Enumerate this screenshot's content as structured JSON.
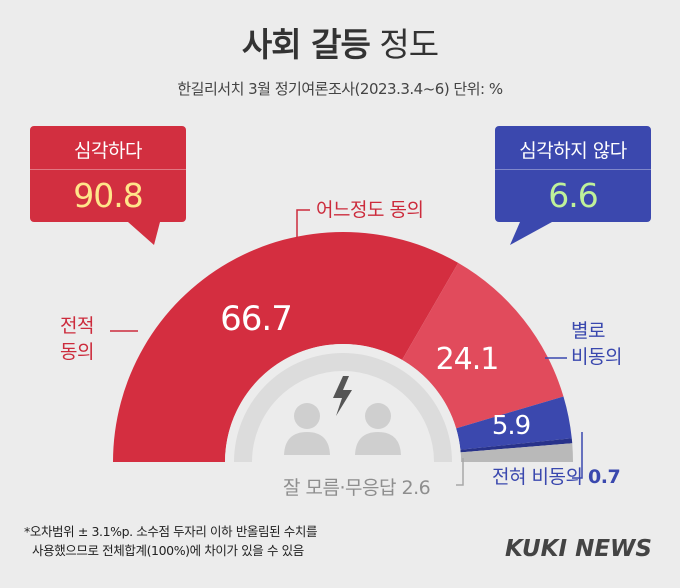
{
  "header": {
    "title_bold": "사회 갈등",
    "title_light": "정도",
    "subtitle": "한길리서치 3월 정기여론조사(2023.3.4~6) 단위: %"
  },
  "callouts": {
    "serious": {
      "label": "심각하다",
      "value": "90.8",
      "color": "#d22f40"
    },
    "not_serious": {
      "label": "심각하지 않다",
      "value": "6.6",
      "color": "#3b48ae"
    }
  },
  "labels": {
    "strongly_agree_line1": "전적",
    "strongly_agree_line2": "동의",
    "somewhat_agree": "어느정도 동의",
    "somewhat_disagree_line1": "별로",
    "somewhat_disagree_line2": "비동의",
    "strongly_disagree": "전혀 비동의",
    "strongly_disagree_value": "0.7",
    "dont_know": "잘 모름·무응답",
    "dont_know_value": "2.6"
  },
  "chart_data": {
    "type": "pie",
    "variant": "semicircle-donut",
    "title": "사회 갈등 정도",
    "unit": "%",
    "series": [
      {
        "name": "전적 동의",
        "value": 66.7,
        "color": "#d42e40"
      },
      {
        "name": "어느정도 동의",
        "value": 24.1,
        "color": "#e14b5c"
      },
      {
        "name": "별로 비동의",
        "value": 5.9,
        "color": "#3b48ae"
      },
      {
        "name": "전혀 비동의",
        "value": 0.7,
        "color": "#28328a"
      },
      {
        "name": "잘 모름·무응답",
        "value": 2.6,
        "color": "#b9b9b9"
      }
    ],
    "data_labels": [
      "66.7",
      "24.1",
      "5.9"
    ]
  },
  "footnote": {
    "line1": "*오차범위 ± 3.1%p. 소수점 두자리 이하 반올림된 수치를",
    "line2": "사용했으므로 전체합계(100%)에 차이가 있을 수 있음"
  },
  "logo": "KUKI NEWS",
  "icons": [
    "people-icon",
    "lightning-icon"
  ]
}
